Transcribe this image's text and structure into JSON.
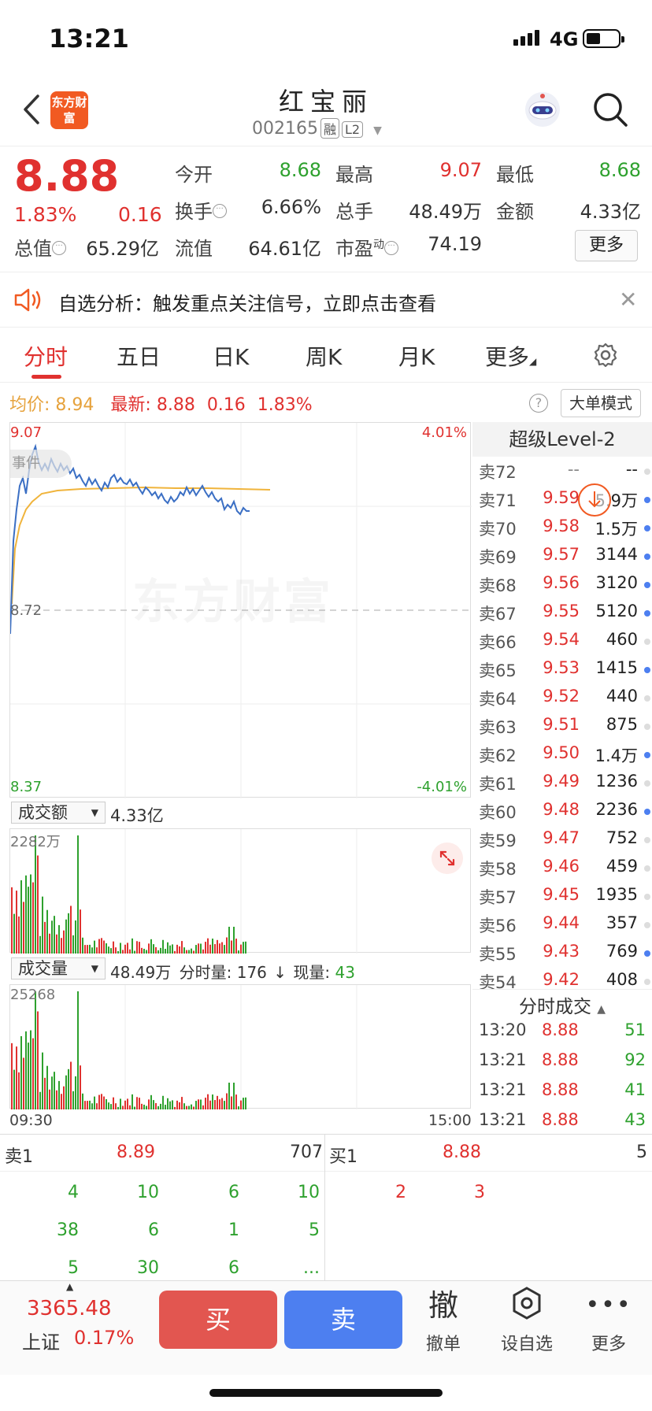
{
  "status_bar": {
    "time": "13:21",
    "network": "4G"
  },
  "header": {
    "stock_name": "红宝丽",
    "code": "002165",
    "tags": [
      "融",
      "L2"
    ],
    "logo_text": "东方财富"
  },
  "quote": {
    "price": "8.88",
    "change_pct": "1.83%",
    "change": "0.16",
    "items": [
      {
        "label": "今开",
        "value": "8.68",
        "color": "green"
      },
      {
        "label": "最高",
        "value": "9.07",
        "color": "red"
      },
      {
        "label": "最低",
        "value": "8.68",
        "color": "green"
      },
      {
        "label": "换手",
        "value": "6.66%",
        "color": "dark"
      },
      {
        "label": "总手",
        "value": "48.49万",
        "color": "dark"
      },
      {
        "label": "金额",
        "value": "4.33亿",
        "color": "dark"
      },
      {
        "label": "总值",
        "value": "65.29亿",
        "color": "dark"
      },
      {
        "label": "流值",
        "value": "64.61亿",
        "color": "dark"
      },
      {
        "label": "市盈",
        "sup": "动",
        "value": "74.19",
        "color": "dark"
      }
    ],
    "more_label": "更多"
  },
  "alert": {
    "text": "自选分析：触发重点关注信号，立即点击查看"
  },
  "tabs": [
    "分时",
    "五日",
    "日K",
    "周K",
    "月K",
    "更多"
  ],
  "avg": {
    "label": "均价:",
    "value": "8.94",
    "latest_label": "最新:",
    "latest": "8.88",
    "chg": "0.16",
    "pct": "1.83%"
  },
  "big_order_label": "大单模式",
  "chart": {
    "top_price": "9.07",
    "top_pct": "4.01%",
    "mid_price": "8.72",
    "bottom_price": "8.37",
    "bottom_pct": "-4.01%",
    "watermark": "东方财富",
    "event_label": "事件"
  },
  "turnover": {
    "dd_label": "成交额",
    "value": "4.33亿",
    "max": "2282万"
  },
  "volume": {
    "dd_label": "成交量",
    "value": "48.49万",
    "seg_label": "分时量:",
    "seg_value": "176",
    "now_label": "现量:",
    "now_value": "43",
    "max": "25268"
  },
  "time_axis": {
    "start": "09:30",
    "end": "15:00"
  },
  "panel": {
    "title": "超级Level-2",
    "orderbook": [
      {
        "label": "卖72",
        "price": "--",
        "vol": "--",
        "dot": "grey"
      },
      {
        "label": "卖71",
        "price": "9.59",
        "vol": "5.9万",
        "dot": "blue"
      },
      {
        "label": "卖70",
        "price": "9.58",
        "vol": "1.5万",
        "dot": "blue"
      },
      {
        "label": "卖69",
        "price": "9.57",
        "vol": "3144",
        "dot": "blue"
      },
      {
        "label": "卖68",
        "price": "9.56",
        "vol": "3120",
        "dot": "blue"
      },
      {
        "label": "卖67",
        "price": "9.55",
        "vol": "5120",
        "dot": "blue"
      },
      {
        "label": "卖66",
        "price": "9.54",
        "vol": "460",
        "dot": "grey"
      },
      {
        "label": "卖65",
        "price": "9.53",
        "vol": "1415",
        "dot": "blue"
      },
      {
        "label": "卖64",
        "price": "9.52",
        "vol": "440",
        "dot": "grey"
      },
      {
        "label": "卖63",
        "price": "9.51",
        "vol": "875",
        "dot": "grey"
      },
      {
        "label": "卖62",
        "price": "9.50",
        "vol": "1.4万",
        "dot": "blue"
      },
      {
        "label": "卖61",
        "price": "9.49",
        "vol": "1236",
        "dot": "grey"
      },
      {
        "label": "卖60",
        "price": "9.48",
        "vol": "2236",
        "dot": "blue"
      },
      {
        "label": "卖59",
        "price": "9.47",
        "vol": "752",
        "dot": "grey"
      },
      {
        "label": "卖58",
        "price": "9.46",
        "vol": "459",
        "dot": "grey"
      },
      {
        "label": "卖57",
        "price": "9.45",
        "vol": "1935",
        "dot": "grey"
      },
      {
        "label": "卖56",
        "price": "9.44",
        "vol": "357",
        "dot": "grey"
      },
      {
        "label": "卖55",
        "price": "9.43",
        "vol": "769",
        "dot": "blue"
      },
      {
        "label": "卖54",
        "price": "9.42",
        "vol": "408",
        "dot": "grey"
      }
    ],
    "ticks_title": "分时成交",
    "ticks": [
      {
        "time": "13:20",
        "price": "8.88",
        "vol": "51"
      },
      {
        "time": "13:21",
        "price": "8.88",
        "vol": "92"
      },
      {
        "time": "13:21",
        "price": "8.88",
        "vol": "41"
      },
      {
        "time": "13:21",
        "price": "8.88",
        "vol": "43"
      }
    ]
  },
  "level1": {
    "sell_label": "卖1",
    "sell_price": "8.89",
    "sell_vol": "707",
    "buy_label": "买1",
    "buy_price": "8.88",
    "buy_vol": "5",
    "sell_queue": [
      [
        "4",
        "10",
        "6",
        "10"
      ],
      [
        "38",
        "6",
        "1",
        "5"
      ],
      [
        "5",
        "30",
        "6",
        "..."
      ]
    ],
    "buy_queue": [
      "2",
      "3"
    ]
  },
  "toolbar": {
    "index_value": "3365.48",
    "index_name": "上证",
    "index_pct": "0.17%",
    "buy": "买",
    "sell": "卖",
    "cancel_icon": "撤",
    "cancel": "撤单",
    "watch": "设自选",
    "more": "更多"
  },
  "colors": {
    "red": "#e0312f",
    "green": "#2ea12e",
    "blue": "#4d7ff0",
    "orange": "#f15a22",
    "avg": "#e6a23c",
    "price_line": "#3b6fc4"
  }
}
